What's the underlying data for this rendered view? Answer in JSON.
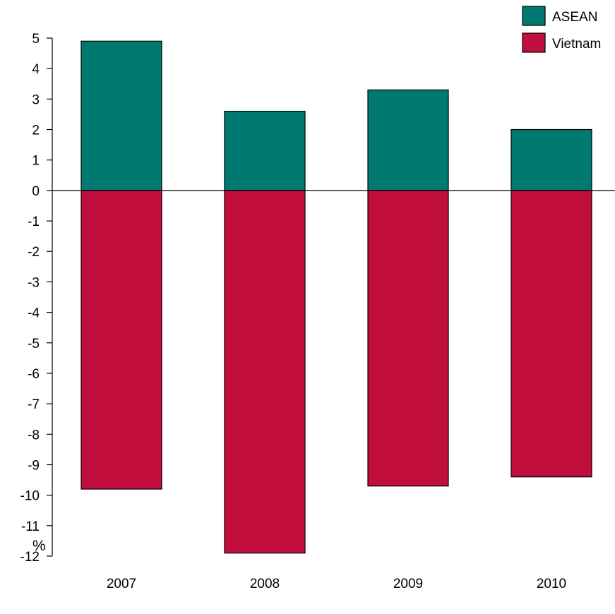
{
  "chart_data": {
    "type": "bar",
    "stacking": "diverging",
    "categories": [
      "2007",
      "2008",
      "2009",
      "2010"
    ],
    "series": [
      {
        "name": "ASEAN",
        "color": "#007a70",
        "values": [
          4.9,
          2.6,
          3.3,
          2.0
        ]
      },
      {
        "name": "Vietnam",
        "color": "#c20e3c",
        "values": [
          -9.8,
          -11.9,
          -9.7,
          -9.4
        ]
      }
    ],
    "ylabel": "%",
    "ylim": [
      -12,
      5
    ],
    "yticks": [
      5,
      4,
      3,
      2,
      1,
      0,
      -1,
      -2,
      -3,
      -4,
      -5,
      -6,
      -7,
      -8,
      -9,
      -10,
      -11,
      -12
    ],
    "grid": false,
    "legend_position": "top-right",
    "zero_line": true
  }
}
